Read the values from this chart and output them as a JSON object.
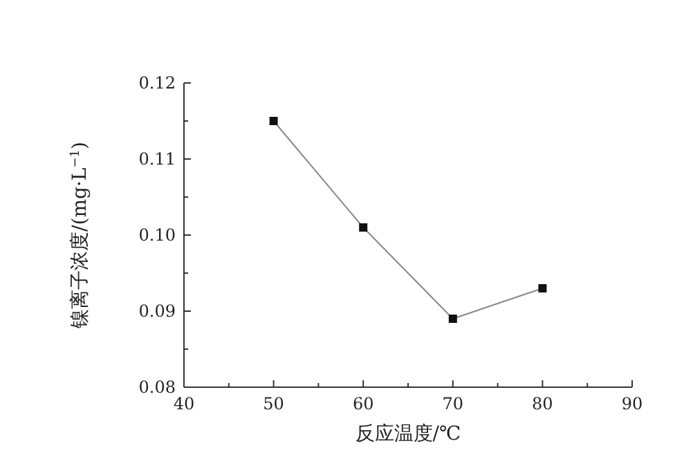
{
  "chart_data": {
    "type": "line",
    "xlabel": "反应温度/℃",
    "ylabel": "镍离子浓度/(mg·L$^{−1}$)",
    "x": [
      50,
      60,
      70,
      80
    ],
    "series": [
      {
        "color": "#888888",
        "values": [
          0.115,
          0.101,
          0.089,
          0.093
        ]
      }
    ],
    "marker": "square",
    "line_style": "solid",
    "grid": false,
    "xlim": [
      40,
      90
    ],
    "xticks": [
      40,
      {
        "value": 45,
        "label": null
      },
      50,
      {
        "value": 55,
        "label": null
      },
      60,
      {
        "value": 65,
        "label": null
      },
      70,
      {
        "value": 75,
        "label": null
      },
      80,
      {
        "value": 85,
        "label": null
      },
      90
    ],
    "ylim": [
      0.08,
      0.12
    ],
    "yticks": [
      0.08,
      {
        "value": 0.085,
        "label": null
      },
      0.09,
      {
        "value": 0.095,
        "label": null
      },
      {
        "value": 0.1,
        "label": "0.10"
      },
      {
        "value": 0.105,
        "label": null
      },
      0.11,
      {
        "value": 0.115,
        "label": null
      },
      0.12
    ]
  }
}
